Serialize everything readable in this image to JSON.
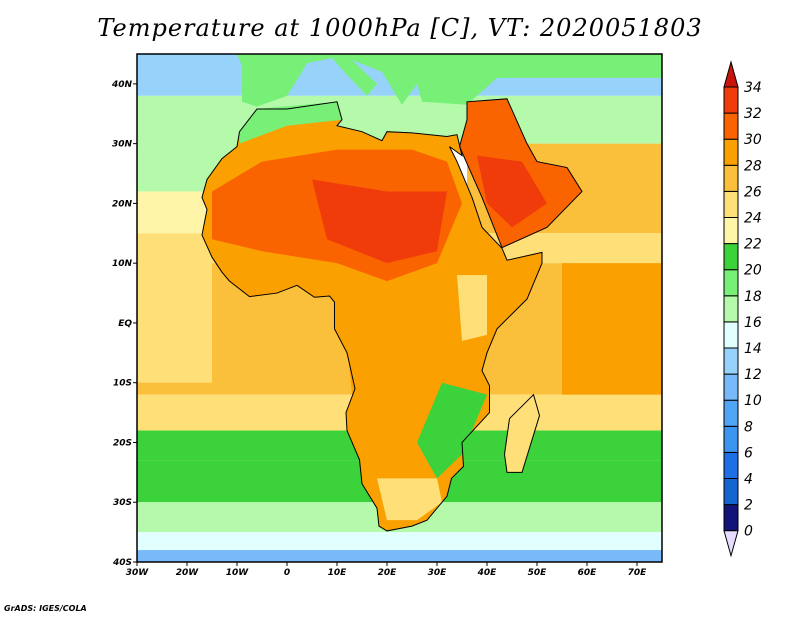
{
  "title": "Temperature at 1000hPa [C], VT: 2020051803",
  "credit": "GrADS: IGES/COLA",
  "chart_data": {
    "type": "heatmap",
    "title": "Temperature at 1000hPa [C], VT: 2020051803",
    "lon_range": [
      -30,
      75
    ],
    "lat_range": [
      -40,
      45
    ],
    "x_ticks": [
      "30W",
      "20W",
      "10W",
      "0",
      "10E",
      "20E",
      "30E",
      "40E",
      "50E",
      "60E",
      "70E"
    ],
    "y_ticks": [
      "40N",
      "30N",
      "20N",
      "10N",
      "EQ",
      "10S",
      "20S",
      "30S",
      "40S"
    ],
    "colorbar": {
      "levels": [
        "0",
        "2",
        "4",
        "6",
        "8",
        "10",
        "12",
        "14",
        "16",
        "18",
        "20",
        "22",
        "24",
        "26",
        "28",
        "30",
        "32",
        "34"
      ],
      "colors": [
        "#e6dcff",
        "#121478",
        "#1464d2",
        "#1e6ee6",
        "#3c96f0",
        "#50a5f5",
        "#78b9fa",
        "#96d2fa",
        "#e1ffff",
        "#b4faaa",
        "#78f078",
        "#3cd23c",
        "#fff5a8",
        "#ffe078",
        "#fac03c",
        "#faa000",
        "#fa6400",
        "#f03c0a",
        "#c8140a"
      ]
    }
  }
}
